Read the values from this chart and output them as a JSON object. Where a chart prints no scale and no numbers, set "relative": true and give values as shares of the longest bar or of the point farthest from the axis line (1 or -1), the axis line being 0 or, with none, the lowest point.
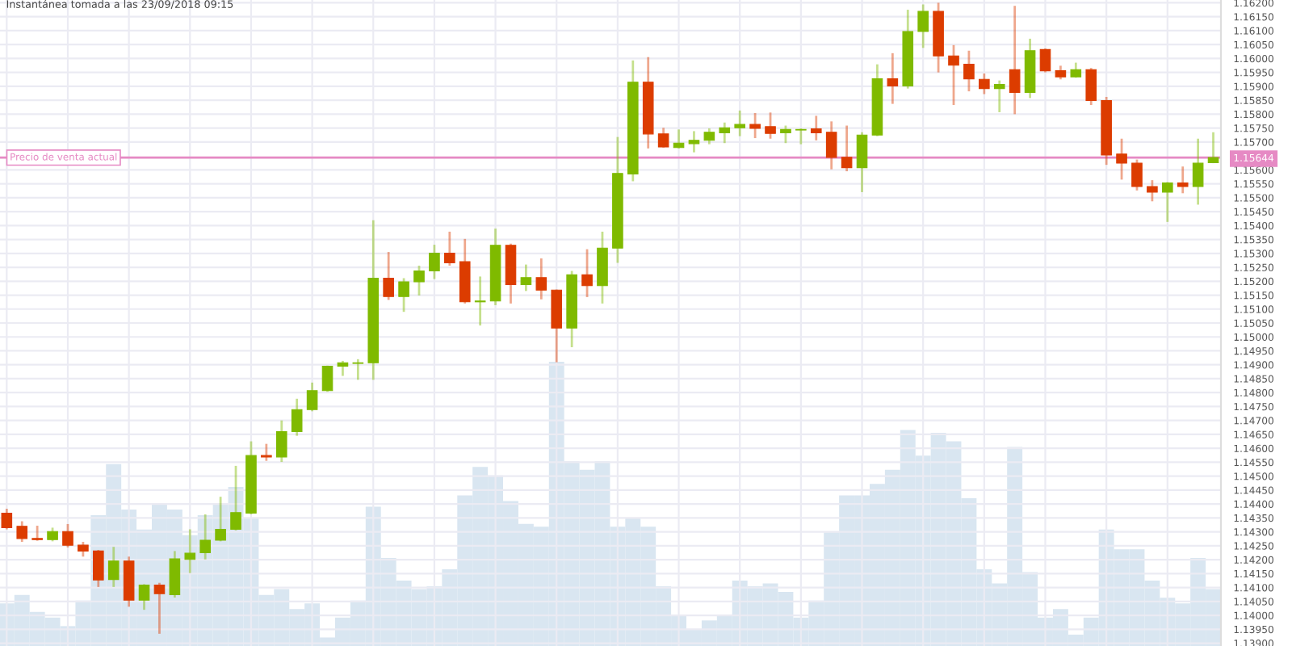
{
  "chart_data": [
    {
      "type": "candlestick",
      "title": "Instantánea tomada a las 23/09/2018 09:15",
      "categories": [
        null,
        null,
        null,
        null,
        null,
        null,
        null,
        null,
        null,
        null,
        null,
        null,
        null,
        null,
        null,
        null,
        null,
        null,
        null,
        null,
        null,
        null,
        null,
        null,
        null,
        null,
        null,
        null,
        null,
        null,
        null,
        null,
        null,
        null,
        null,
        null,
        null,
        null,
        null,
        null,
        null,
        null,
        null,
        null,
        null,
        null,
        null,
        null,
        null,
        null,
        null,
        null,
        null,
        null,
        null,
        null,
        null,
        null,
        null,
        null,
        null,
        null,
        null,
        null,
        null,
        null,
        null,
        null,
        null,
        null,
        null,
        null,
        null,
        null,
        null,
        null,
        null,
        null,
        null,
        null
      ],
      "ohlc": [
        [
          1.14367,
          1.14383,
          1.14309,
          1.14315
        ],
        [
          1.1432,
          1.14338,
          1.14264,
          1.14276
        ],
        [
          1.14276,
          1.14322,
          1.14268,
          1.14272
        ],
        [
          1.14272,
          1.14315,
          1.14266,
          1.14301
        ],
        [
          1.14301,
          1.14328,
          1.14244,
          1.14252
        ],
        [
          1.14252,
          1.14264,
          1.14211,
          1.14231
        ],
        [
          1.14231,
          1.14235,
          1.14102,
          1.14127
        ],
        [
          1.14129,
          1.14246,
          1.14102,
          1.14195
        ],
        [
          1.14195,
          1.14211,
          1.14031,
          1.14055
        ],
        [
          1.14055,
          1.14112,
          1.1402,
          1.14109
        ],
        [
          1.14109,
          1.14117,
          1.13934,
          1.14078
        ],
        [
          1.14074,
          1.14231,
          1.14064,
          1.14203
        ],
        [
          1.14201,
          1.14309,
          1.14152,
          1.14223
        ],
        [
          1.14225,
          1.14363,
          1.14201,
          1.1427
        ],
        [
          1.1427,
          1.14426,
          1.14266,
          1.14309
        ],
        [
          1.14309,
          1.14537,
          1.14305,
          1.14369
        ],
        [
          1.14367,
          1.14625,
          1.14363,
          1.14574
        ],
        [
          1.14574,
          1.14616,
          1.14555,
          1.14569
        ],
        [
          1.14569,
          1.147,
          1.14551,
          1.1466
        ],
        [
          1.1466,
          1.14778,
          1.14645,
          1.14739
        ],
        [
          1.14739,
          1.14836,
          1.14733,
          1.14807
        ],
        [
          1.14807,
          1.14897,
          1.14803,
          1.14895
        ],
        [
          1.14895,
          1.14914,
          1.1486,
          1.14907
        ],
        [
          1.14905,
          1.1492,
          1.14846,
          1.14907
        ],
        [
          1.14907,
          1.15419,
          1.14846,
          1.15211
        ],
        [
          1.15211,
          1.15305,
          1.15133,
          1.15145
        ],
        [
          1.15145,
          1.15211,
          1.1509,
          1.15198
        ],
        [
          1.15198,
          1.15256,
          1.15149,
          1.15237
        ],
        [
          1.15237,
          1.15331,
          1.15208,
          1.15301
        ],
        [
          1.15301,
          1.15378,
          1.15256,
          1.15266
        ],
        [
          1.1527,
          1.15352,
          1.1512,
          1.15126
        ],
        [
          1.15126,
          1.15217,
          1.15041,
          1.15129
        ],
        [
          1.15129,
          1.15389,
          1.15114,
          1.15329
        ],
        [
          1.15329,
          1.15335,
          1.1512,
          1.15188
        ],
        [
          1.15188,
          1.1526,
          1.15165,
          1.15213
        ],
        [
          1.15213,
          1.15282,
          1.15135,
          1.15168
        ],
        [
          1.15168,
          1.1517,
          1.14909,
          1.15032
        ],
        [
          1.15032,
          1.15237,
          1.14963,
          1.15223
        ],
        [
          1.15223,
          1.15315,
          1.15143,
          1.15184
        ],
        [
          1.15184,
          1.15378,
          1.1512,
          1.15319
        ],
        [
          1.15319,
          1.15718,
          1.15266,
          1.15587
        ],
        [
          1.15585,
          1.15993,
          1.15559,
          1.15915
        ],
        [
          1.15915,
          1.16005,
          1.15677,
          1.15729
        ],
        [
          1.15729,
          1.15751,
          1.1568,
          1.15682
        ],
        [
          1.1568,
          1.15745,
          1.15677,
          1.15696
        ],
        [
          1.15694,
          1.15739,
          1.15663,
          1.15706
        ],
        [
          1.15706,
          1.15749,
          1.15692,
          1.15735
        ],
        [
          1.15733,
          1.1577,
          1.15696,
          1.15751
        ],
        [
          1.15751,
          1.15813,
          1.15721,
          1.15763
        ],
        [
          1.15763,
          1.15804,
          1.15714,
          1.15749
        ],
        [
          1.15755,
          1.15806,
          1.15712,
          1.15731
        ],
        [
          1.15733,
          1.15759,
          1.15696,
          1.15745
        ],
        [
          1.15743,
          1.15749,
          1.15692,
          1.15745
        ],
        [
          1.15747,
          1.15794,
          1.15706,
          1.15733
        ],
        [
          1.15735,
          1.15774,
          1.15602,
          1.15645
        ],
        [
          1.15645,
          1.15759,
          1.15595,
          1.15608
        ],
        [
          1.15608,
          1.15735,
          1.1552,
          1.15725
        ],
        [
          1.15725,
          1.15979,
          1.15721,
          1.15927
        ],
        [
          1.15927,
          1.16019,
          1.15837,
          1.15901
        ],
        [
          1.15901,
          1.16175,
          1.15892,
          1.16097
        ],
        [
          1.16097,
          1.16194,
          1.16038,
          1.16169
        ],
        [
          1.16169,
          1.162,
          1.1595,
          1.16009
        ],
        [
          1.16009,
          1.16048,
          1.15833,
          1.15976
        ],
        [
          1.15979,
          1.16028,
          1.15882,
          1.15927
        ],
        [
          1.15925,
          1.15946,
          1.15872,
          1.15892
        ],
        [
          1.15892,
          1.15921,
          1.15807,
          1.15907
        ],
        [
          1.1596,
          1.16189,
          1.158,
          1.15878
        ],
        [
          1.15878,
          1.16071,
          1.15858,
          1.16028
        ],
        [
          1.16032,
          1.16036,
          1.1595,
          1.15956
        ],
        [
          1.15956,
          1.15974,
          1.15925,
          1.15934
        ],
        [
          1.15934,
          1.15985,
          1.15931,
          1.1596
        ],
        [
          1.1596,
          1.15966,
          1.15833,
          1.15849
        ],
        [
          1.15849,
          1.15862,
          1.15618,
          1.15653
        ],
        [
          1.15657,
          1.15712,
          1.15565,
          1.15624
        ],
        [
          1.15624,
          1.15637,
          1.15526,
          1.1554
        ],
        [
          1.1554,
          1.15563,
          1.15487,
          1.1552
        ],
        [
          1.1552,
          1.15556,
          1.15413,
          1.15553
        ],
        [
          1.15553,
          1.15612,
          1.15516,
          1.1554
        ],
        [
          1.1554,
          1.15712,
          1.15475,
          1.15624
        ],
        [
          1.15626,
          1.15735,
          1.15624,
          1.15644
        ]
      ],
      "colors": [
        "#dc3c00",
        "#dc3c00",
        "#dc3c00",
        "#7fba00",
        "#dc3c00",
        "#dc3c00",
        "#dc3c00",
        "#7fba00",
        "#dc3c00",
        "#7fba00",
        "#dc3c00",
        "#7fba00",
        "#7fba00",
        "#7fba00",
        "#7fba00",
        "#7fba00",
        "#7fba00",
        "#dc3c00",
        "#7fba00",
        "#7fba00",
        "#7fba00",
        "#7fba00",
        "#7fba00",
        "#7fba00",
        "#7fba00",
        "#dc3c00",
        "#7fba00",
        "#7fba00",
        "#7fba00",
        "#dc3c00",
        "#dc3c00",
        "#7fba00",
        "#7fba00",
        "#dc3c00",
        "#7fba00",
        "#dc3c00",
        "#dc3c00",
        "#7fba00",
        "#dc3c00",
        "#7fba00",
        "#7fba00",
        "#7fba00",
        "#dc3c00",
        "#dc3c00",
        "#7fba00",
        "#7fba00",
        "#7fba00",
        "#7fba00",
        "#7fba00",
        "#dc3c00",
        "#dc3c00",
        "#7fba00",
        "#7fba00",
        "#dc3c00",
        "#dc3c00",
        "#dc3c00",
        "#7fba00",
        "#7fba00",
        "#dc3c00",
        "#7fba00",
        "#7fba00",
        "#dc3c00",
        "#dc3c00",
        "#dc3c00",
        "#dc3c00",
        "#7fba00",
        "#dc3c00",
        "#7fba00",
        "#dc3c00",
        "#dc3c00",
        "#7fba00",
        "#dc3c00",
        "#dc3c00",
        "#dc3c00",
        "#dc3c00",
        "#dc3c00",
        "#7fba00",
        "#dc3c00",
        "#7fba00",
        "#7fba00"
      ],
      "ylim": [
        1.1389,
        1.1621
      ],
      "yticks": [
        {
          "value": 1.139,
          "label": "1.13900"
        },
        {
          "value": 1.1395,
          "label": "1.13950"
        },
        {
          "value": 1.14,
          "label": "1.14000"
        },
        {
          "value": 1.1405,
          "label": "1.14050"
        },
        {
          "value": 1.141,
          "label": "1.14100"
        },
        {
          "value": 1.1415,
          "label": "1.14150"
        },
        {
          "value": 1.142,
          "label": "1.14200"
        },
        {
          "value": 1.1425,
          "label": "1.14250"
        },
        {
          "value": 1.143,
          "label": "1.14300"
        },
        {
          "value": 1.1435,
          "label": "1.14350"
        },
        {
          "value": 1.144,
          "label": "1.14400"
        },
        {
          "value": 1.1445,
          "label": "1.14450"
        },
        {
          "value": 1.145,
          "label": "1.14500"
        },
        {
          "value": 1.1455,
          "label": "1.14550"
        },
        {
          "value": 1.146,
          "label": "1.14600"
        },
        {
          "value": 1.1465,
          "label": "1.14650"
        },
        {
          "value": 1.147,
          "label": "1.14700"
        },
        {
          "value": 1.1475,
          "label": "1.14750"
        },
        {
          "value": 1.148,
          "label": "1.14800"
        },
        {
          "value": 1.1485,
          "label": "1.14850"
        },
        {
          "value": 1.149,
          "label": "1.14900"
        },
        {
          "value": 1.1495,
          "label": "1.14950"
        },
        {
          "value": 1.15,
          "label": "1.15000"
        },
        {
          "value": 1.1505,
          "label": "1.15050"
        },
        {
          "value": 1.151,
          "label": "1.15100"
        },
        {
          "value": 1.1515,
          "label": "1.15150"
        },
        {
          "value": 1.152,
          "label": "1.15200"
        },
        {
          "value": 1.1525,
          "label": "1.15250"
        },
        {
          "value": 1.153,
          "label": "1.15300"
        },
        {
          "value": 1.1535,
          "label": "1.15350"
        },
        {
          "value": 1.154,
          "label": "1.15400"
        },
        {
          "value": 1.1545,
          "label": "1.15450"
        },
        {
          "value": 1.155,
          "label": "1.15500"
        },
        {
          "value": 1.1555,
          "label": "1.15550"
        },
        {
          "value": 1.156,
          "label": "1.15600"
        },
        {
          "value": 1.15644,
          "label": "1.15644"
        },
        {
          "value": 1.157,
          "label": "1.15700"
        },
        {
          "value": 1.1575,
          "label": "1.15750"
        },
        {
          "value": 1.158,
          "label": "1.15800"
        },
        {
          "value": 1.1585,
          "label": "1.15850"
        },
        {
          "value": 1.159,
          "label": "1.15900"
        },
        {
          "value": 1.1595,
          "label": "1.15950"
        },
        {
          "value": 1.16,
          "label": "1.16000"
        },
        {
          "value": 1.1605,
          "label": "1.16050"
        },
        {
          "value": 1.161,
          "label": "1.16100"
        },
        {
          "value": 1.1615,
          "label": "1.16150"
        },
        {
          "value": 1.162,
          "label": "1.16200"
        }
      ],
      "ref_lines": [
        {
          "axis": "y",
          "value": 1.15644,
          "label": "Precio de venta actual",
          "color": "#e68ac4"
        }
      ],
      "grid": true,
      "tick_labels": "y"
    },
    {
      "type": "bar",
      "relative": true,
      "color": "#d9e6f1",
      "tick_labels": false,
      "categories": [
        null,
        null,
        null,
        null,
        null,
        null,
        null,
        null,
        null,
        null,
        null,
        null,
        null,
        null,
        null,
        null,
        null,
        null,
        null,
        null,
        null,
        null,
        null,
        null,
        null,
        null,
        null,
        null,
        null,
        null,
        null,
        null,
        null,
        null,
        null,
        null,
        null,
        null,
        null,
        null,
        null,
        null,
        null,
        null,
        null,
        null,
        null,
        null,
        null,
        null,
        null,
        null,
        null,
        null,
        null,
        null,
        null,
        null,
        null,
        null,
        null,
        null,
        null,
        null,
        null,
        null,
        null,
        null,
        null,
        null,
        null,
        null,
        null,
        null,
        null,
        null,
        null,
        null,
        null,
        null
      ],
      "values": [
        0.15,
        0.18,
        0.12,
        0.1,
        0.07,
        0.16,
        0.46,
        0.64,
        0.48,
        0.41,
        0.5,
        0.48,
        0.39,
        0.46,
        0.5,
        0.56,
        0.45,
        0.18,
        0.2,
        0.13,
        0.15,
        0.03,
        0.1,
        0.16,
        0.49,
        0.31,
        0.23,
        0.2,
        0.21,
        0.27,
        0.53,
        0.63,
        0.6,
        0.51,
        0.43,
        0.42,
        1,
        0.65,
        0.62,
        0.65,
        0.42,
        0.45,
        0.42,
        0.21,
        0.11,
        0.06,
        0.09,
        0.11,
        0.23,
        0.21,
        0.22,
        0.19,
        0.1,
        0.16,
        0.4,
        0.53,
        0.53,
        0.57,
        0.62,
        0.76,
        0.67,
        0.75,
        0.72,
        0.52,
        0.27,
        0.22,
        0.7,
        0.26,
        0.1,
        0.13,
        0.04,
        0.1,
        0.41,
        0.34,
        0.34,
        0.23,
        0.17,
        0.15,
        0.31,
        0.2
      ]
    }
  ]
}
